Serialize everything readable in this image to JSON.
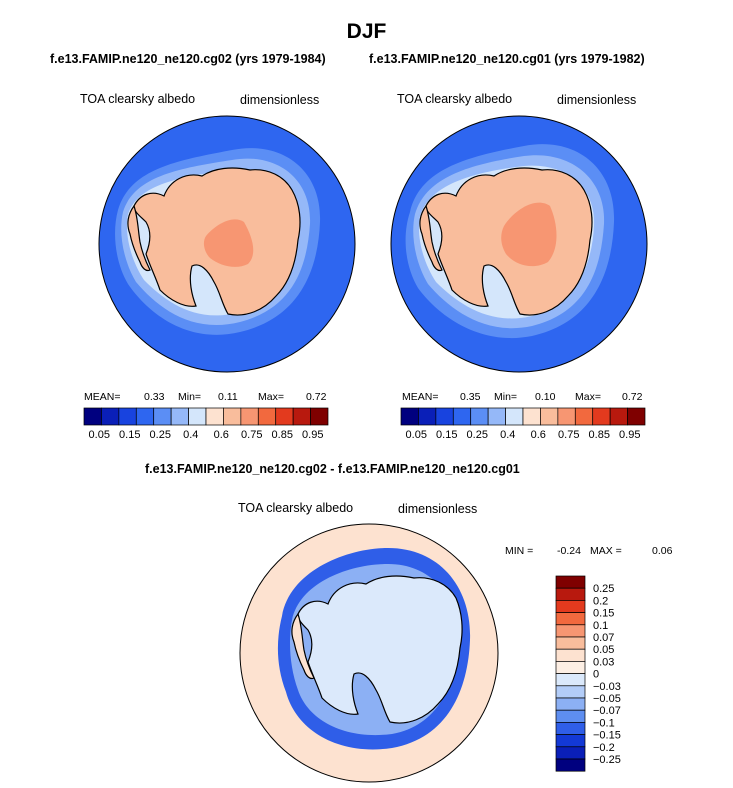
{
  "figure": {
    "title": "DJF",
    "subtitle_left": "f.e13.FAMIP.ne120_ne120.cg02 (yrs 1979-1984)",
    "subtitle_right": "f.e13.FAMIP.ne120_ne120.cg01 (yrs 1979-1982)",
    "diff_title": "f.e13.FAMIP.ne120_ne120.cg02 - f.e13.FAMIP.ne120_ne120.cg01"
  },
  "chart_data": [
    {
      "type": "heatmap",
      "projection": "south-polar stereographic",
      "variable": "TOA clearsky albedo",
      "units": "dimensionless",
      "stats": {
        "mean_label": "MEAN=",
        "mean": "0.33",
        "min_label": "Min=",
        "min": "0.11",
        "max_label": "Max=",
        "max": "0.72"
      },
      "levels": [
        "0.05",
        "0.15",
        "0.25",
        "0.4",
        "0.6",
        "0.75",
        "0.85",
        "0.95"
      ],
      "colors": [
        "#00007f",
        "#0a1fb8",
        "#1843df",
        "#2e66f0",
        "#5b8ef5",
        "#95b8f8",
        "#d4e6fb",
        "#fde2d0",
        "#f9bd9c",
        "#f79672",
        "#f2693e",
        "#e33a1e",
        "#b8190e",
        "#7f0000"
      ]
    },
    {
      "type": "heatmap",
      "projection": "south-polar stereographic",
      "variable": "TOA clearsky albedo",
      "units": "dimensionless",
      "stats": {
        "mean_label": "MEAN=",
        "mean": "0.35",
        "min_label": "Min=",
        "min": "0.10",
        "max_label": "Max=",
        "max": "0.72"
      },
      "levels": [
        "0.05",
        "0.15",
        "0.25",
        "0.4",
        "0.6",
        "0.75",
        "0.85",
        "0.95"
      ],
      "colors": [
        "#00007f",
        "#0a1fb8",
        "#1843df",
        "#2e66f0",
        "#5b8ef5",
        "#95b8f8",
        "#d4e6fb",
        "#fde2d0",
        "#f9bd9c",
        "#f79672",
        "#f2693e",
        "#e33a1e",
        "#b8190e",
        "#7f0000"
      ]
    },
    {
      "type": "heatmap",
      "projection": "south-polar stereographic",
      "variable": "TOA clearsky albedo",
      "units": "dimensionless",
      "stats": {
        "min_label": "MIN =",
        "min": "-0.24",
        "max_label": "MAX =",
        "max": "0.06"
      },
      "levels": [
        "0.25",
        "0.2",
        "0.15",
        "0.1",
        "0.07",
        "0.05",
        "0.03",
        "0",
        "−0.03",
        "−0.05",
        "−0.07",
        "−0.1",
        "−0.15",
        "−0.2",
        "−0.25"
      ],
      "colors": [
        "#7f0000",
        "#b8190e",
        "#e33a1e",
        "#f2693e",
        "#f79672",
        "#f9bd9c",
        "#fde2d0",
        "#fdefe4",
        "#dbe9fb",
        "#b3cdf8",
        "#8cb0f4",
        "#5e8ef0",
        "#2f5ee8",
        "#1339d6",
        "#0a1fb8",
        "#00007f"
      ]
    }
  ]
}
